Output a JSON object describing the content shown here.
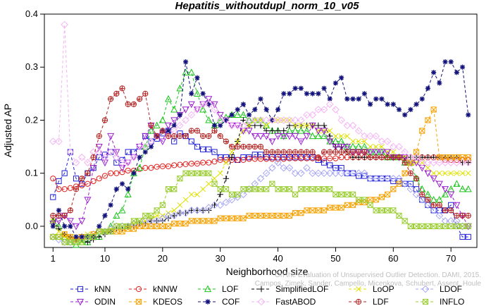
{
  "chart_data": {
    "type": "line",
    "title": "Hepatitis_withoutdupl_norm_10_v05",
    "xlabel": "Neighborhood size",
    "ylabel": "Adjusted AP",
    "xlim": [
      1,
      73
    ],
    "ylim": [
      -0.04,
      0.4
    ],
    "xticks": [
      1,
      10,
      20,
      30,
      40,
      50,
      60,
      70
    ],
    "yticks": [
      0.0,
      0.1,
      0.2,
      0.3,
      0.4
    ],
    "ytick_labels": [
      "0.0",
      "0.1",
      "0.2",
      "0.3",
      "0.4"
    ],
    "grid": false,
    "legend_position": "bottom",
    "x": [
      1,
      2,
      3,
      4,
      5,
      6,
      7,
      8,
      9,
      10,
      11,
      12,
      13,
      14,
      15,
      16,
      17,
      18,
      19,
      20,
      21,
      22,
      23,
      24,
      25,
      26,
      27,
      28,
      29,
      30,
      31,
      32,
      33,
      34,
      35,
      36,
      37,
      38,
      39,
      40,
      41,
      42,
      43,
      44,
      45,
      46,
      47,
      48,
      49,
      50,
      51,
      52,
      53,
      54,
      55,
      56,
      57,
      58,
      59,
      60,
      61,
      62,
      63,
      64,
      65,
      66,
      67,
      68,
      69,
      70,
      71,
      72,
      73
    ],
    "series": [
      {
        "name": "kNN",
        "color": "#1f1fd6",
        "marker": "square",
        "values": [
          0.055,
          0.085,
          0.1,
          0.14,
          0.09,
          0.08,
          0.1,
          0.11,
          0.13,
          0.135,
          0.14,
          0.12,
          0.125,
          0.14,
          0.14,
          0.15,
          0.17,
          0.16,
          0.165,
          0.175,
          0.18,
          0.16,
          0.175,
          0.17,
          0.16,
          0.15,
          0.145,
          0.145,
          0.14,
          0.13,
          0.13,
          0.13,
          0.125,
          0.13,
          0.13,
          0.135,
          0.135,
          0.13,
          0.13,
          0.13,
          0.13,
          0.13,
          0.13,
          0.13,
          0.13,
          0.13,
          0.125,
          0.12,
          0.115,
          0.11,
          0.11,
          0.1,
          0.1,
          0.095,
          0.095,
          0.09,
          0.09,
          0.09,
          0.09,
          0.085,
          0.085,
          0.08,
          0.08,
          0.07,
          0.05,
          0.04,
          0.03,
          0.03,
          0.03,
          0.04,
          0.0,
          -0.02,
          -0.02
        ]
      },
      {
        "name": "kNNW",
        "color": "#e0201e",
        "marker": "circle",
        "values": [
          0.09,
          0.07,
          0.07,
          0.072,
          0.075,
          0.077,
          0.08,
          0.085,
          0.09,
          0.095,
          0.1,
          0.1,
          0.102,
          0.105,
          0.105,
          0.108,
          0.11,
          0.11,
          0.112,
          0.113,
          0.113,
          0.115,
          0.116,
          0.117,
          0.118,
          0.118,
          0.12,
          0.12,
          0.122,
          0.125,
          0.125,
          0.125,
          0.125,
          0.125,
          0.127,
          0.127,
          0.127,
          0.127,
          0.127,
          0.127,
          0.127,
          0.128,
          0.128,
          0.128,
          0.128,
          0.128,
          0.128,
          0.128,
          0.128,
          0.128,
          0.13,
          0.13,
          0.13,
          0.13,
          0.13,
          0.13,
          0.13,
          0.13,
          0.13,
          0.13,
          0.13,
          0.13,
          0.13,
          0.13,
          0.13,
          0.13,
          0.13,
          0.13,
          0.125,
          0.125,
          0.125,
          0.125,
          0.125
        ]
      },
      {
        "name": "LOF",
        "color": "#19c519",
        "marker": "triangle-up",
        "values": [
          0.01,
          0.0,
          -0.02,
          -0.03,
          -0.035,
          -0.03,
          -0.03,
          -0.02,
          -0.02,
          -0.01,
          0.0,
          0.02,
          0.03,
          0.06,
          0.1,
          0.11,
          0.15,
          0.18,
          0.19,
          0.2,
          0.24,
          0.22,
          0.26,
          0.29,
          0.29,
          0.25,
          0.22,
          0.2,
          0.19,
          0.2,
          0.205,
          0.21,
          0.21,
          0.21,
          0.2,
          0.2,
          0.2,
          0.19,
          0.18,
          0.18,
          0.17,
          0.18,
          0.18,
          0.18,
          0.18,
          0.17,
          0.17,
          0.17,
          0.16,
          0.16,
          0.16,
          0.15,
          0.15,
          0.15,
          0.15,
          0.14,
          0.14,
          0.14,
          0.13,
          0.13,
          0.13,
          0.12,
          0.12,
          0.09,
          0.07,
          0.06,
          0.05,
          0.05,
          0.06,
          0.07,
          0.08,
          0.07,
          0.07
        ]
      },
      {
        "name": "SimplifiedLOF",
        "color": "#000000",
        "marker": "plus",
        "values": [
          0.01,
          -0.005,
          -0.015,
          -0.02,
          -0.025,
          -0.025,
          -0.03,
          -0.025,
          -0.02,
          -0.015,
          -0.01,
          -0.005,
          -0.005,
          0.0,
          0.0,
          0.005,
          0.005,
          0.01,
          0.01,
          0.01,
          0.015,
          0.02,
          0.025,
          0.025,
          0.03,
          0.03,
          0.03,
          0.03,
          0.04,
          0.06,
          0.09,
          0.13,
          0.16,
          0.2,
          0.19,
          0.19,
          0.19,
          0.18,
          0.18,
          0.18,
          0.18,
          0.19,
          0.19,
          0.19,
          0.19,
          0.19,
          0.19,
          0.19,
          0.17,
          0.15,
          0.15,
          0.14,
          0.13,
          0.13,
          0.13,
          0.13,
          0.13,
          0.13,
          0.13,
          0.13,
          0.13,
          0.13,
          0.13,
          0.13,
          0.13,
          0.13,
          0.13,
          0.13,
          0.13,
          0.13,
          0.13,
          0.12,
          0.12
        ]
      },
      {
        "name": "LoOP",
        "color": "#e0e000",
        "marker": "x",
        "values": [
          0.01,
          -0.01,
          -0.02,
          -0.025,
          -0.02,
          -0.02,
          -0.015,
          -0.015,
          -0.01,
          -0.01,
          -0.005,
          0.0,
          0.0,
          0.0,
          0.005,
          0.01,
          0.01,
          0.015,
          0.02,
          0.02,
          0.025,
          0.03,
          0.04,
          0.05,
          0.06,
          0.06,
          0.07,
          0.08,
          0.09,
          0.1,
          0.12,
          0.14,
          0.16,
          0.18,
          0.19,
          0.2,
          0.2,
          0.19,
          0.2,
          0.2,
          0.2,
          0.2,
          0.19,
          0.19,
          0.19,
          0.19,
          0.18,
          0.18,
          0.18,
          0.17,
          0.17,
          0.17,
          0.16,
          0.16,
          0.16,
          0.15,
          0.15,
          0.15,
          0.14,
          0.14,
          0.13,
          0.13,
          0.12,
          0.12,
          0.12,
          0.11,
          0.1,
          0.1,
          0.1,
          0.1,
          0.1,
          0.1,
          0.1
        ]
      },
      {
        "name": "LDOF",
        "color": "#a7a7f5",
        "marker": "diamond",
        "values": [
          -0.02,
          -0.025,
          -0.03,
          -0.03,
          -0.025,
          -0.02,
          -0.02,
          -0.015,
          -0.01,
          -0.01,
          -0.005,
          0.0,
          0.0,
          0.0,
          0.005,
          0.005,
          0.01,
          0.01,
          0.01,
          0.015,
          0.02,
          0.02,
          0.025,
          0.025,
          0.03,
          0.03,
          0.03,
          0.035,
          0.04,
          0.04,
          0.045,
          0.05,
          0.055,
          0.06,
          0.07,
          0.08,
          0.09,
          0.1,
          0.11,
          0.12,
          0.11,
          0.11,
          0.1,
          0.1,
          0.11,
          0.1,
          0.1,
          0.1,
          0.1,
          0.1,
          0.1,
          0.1,
          0.1,
          0.1,
          0.1,
          0.09,
          0.09,
          0.09,
          0.09,
          0.09,
          0.09,
          0.08,
          0.07,
          0.06,
          0.05,
          0.04,
          0.03,
          0.02,
          0.01,
          0.01,
          0.01,
          0.0,
          0.0
        ]
      },
      {
        "name": "ODIN",
        "color": "#9a1fd1",
        "marker": "triangle-down",
        "values": [
          0.005,
          0.01,
          0.02,
          0.01,
          0.0,
          0.01,
          0.05,
          0.11,
          0.15,
          0.12,
          0.17,
          0.14,
          0.11,
          0.12,
          0.13,
          0.15,
          0.17,
          0.19,
          0.17,
          0.16,
          0.19,
          0.2,
          0.21,
          0.22,
          0.23,
          0.22,
          0.23,
          0.24,
          0.23,
          0.21,
          0.2,
          0.19,
          0.19,
          0.18,
          0.18,
          0.17,
          0.17,
          0.17,
          0.16,
          0.17,
          0.17,
          0.17,
          0.17,
          0.16,
          0.17,
          0.19,
          0.18,
          0.18,
          0.16,
          0.15,
          0.15,
          0.15,
          0.14,
          0.14,
          0.14,
          0.14,
          0.14,
          0.14,
          0.14,
          0.13,
          0.13,
          0.13,
          0.12,
          0.12,
          0.11,
          0.1,
          0.09,
          0.08,
          0.07,
          0.06,
          0.04,
          0.02,
          0.0
        ]
      },
      {
        "name": "KDEOS",
        "color": "#f5a50c",
        "marker": "square-x",
        "values": [
          -0.02,
          -0.02,
          -0.015,
          -0.02,
          -0.025,
          -0.02,
          -0.02,
          -0.015,
          -0.01,
          -0.01,
          -0.01,
          -0.01,
          -0.01,
          -0.005,
          -0.005,
          0.0,
          0.0,
          0.0,
          0.0,
          0.0,
          0.0,
          0.005,
          0.005,
          0.005,
          0.01,
          0.01,
          0.01,
          0.01,
          0.01,
          0.015,
          0.015,
          0.015,
          0.015,
          0.015,
          0.02,
          0.02,
          0.02,
          0.02,
          0.02,
          0.02,
          0.02,
          0.02,
          0.025,
          0.025,
          0.03,
          0.03,
          0.03,
          0.03,
          0.035,
          0.035,
          0.035,
          0.04,
          0.04,
          0.045,
          0.045,
          0.05,
          0.05,
          0.055,
          0.06,
          0.07,
          0.08,
          0.1,
          0.12,
          0.14,
          0.18,
          0.2,
          0.22,
          0.13,
          0.13,
          0.13,
          0.13,
          0.13,
          0.13
        ]
      },
      {
        "name": "COF",
        "color": "#12127a",
        "marker": "asterisk",
        "values": [
          0.0,
          0.03,
          0.0,
          0.0,
          -0.02,
          -0.02,
          -0.02,
          -0.02,
          0.0,
          0.02,
          0.04,
          0.07,
          0.08,
          0.07,
          0.1,
          0.13,
          0.14,
          0.15,
          0.17,
          0.18,
          0.18,
          0.19,
          0.21,
          0.31,
          0.25,
          0.28,
          0.25,
          0.23,
          0.19,
          0.19,
          0.2,
          0.21,
          0.22,
          0.23,
          0.21,
          0.22,
          0.24,
          0.22,
          0.2,
          0.22,
          0.25,
          0.25,
          0.26,
          0.26,
          0.25,
          0.25,
          0.25,
          0.26,
          0.24,
          0.27,
          0.28,
          0.24,
          0.24,
          0.24,
          0.25,
          0.23,
          0.24,
          0.24,
          0.23,
          0.23,
          0.22,
          0.21,
          0.22,
          0.23,
          0.24,
          0.26,
          0.29,
          0.27,
          0.31,
          0.31,
          0.29,
          0.3,
          0.21
        ]
      },
      {
        "name": "FastABOD",
        "color": "#f4b5f4",
        "marker": "diamond",
        "values": [
          0.16,
          0.16,
          0.38,
          0.14,
          0.12,
          0.13,
          0.12,
          0.14,
          0.14,
          0.13,
          0.14,
          0.13,
          0.12,
          0.12,
          0.13,
          0.15,
          0.15,
          0.16,
          0.17,
          0.18,
          0.17,
          0.18,
          0.19,
          0.2,
          0.21,
          0.22,
          0.23,
          0.23,
          0.22,
          0.2,
          0.2,
          0.19,
          0.19,
          0.19,
          0.2,
          0.2,
          0.2,
          0.2,
          0.2,
          0.2,
          0.2,
          0.2,
          0.2,
          0.2,
          0.21,
          0.21,
          0.22,
          0.22,
          0.23,
          0.22,
          0.2,
          0.19,
          0.19,
          0.18,
          0.17,
          0.17,
          0.17,
          0.16,
          0.16,
          0.15,
          0.15,
          0.14,
          0.13,
          0.13,
          0.12,
          0.12,
          0.12,
          0.12,
          0.12,
          0.12,
          0.12,
          0.12,
          0.12
        ]
      },
      {
        "name": "LDF",
        "color": "#b22323",
        "marker": "circle-plus",
        "values": [
          0.02,
          0.02,
          0.02,
          0.03,
          0.07,
          0.09,
          0.1,
          0.13,
          0.17,
          0.2,
          0.24,
          0.25,
          0.26,
          0.23,
          0.23,
          0.24,
          0.25,
          0.19,
          0.17,
          0.18,
          0.17,
          0.17,
          0.17,
          0.17,
          0.18,
          0.18,
          0.17,
          0.17,
          0.18,
          0.17,
          0.16,
          0.15,
          0.15,
          0.15,
          0.15,
          0.15,
          0.15,
          0.14,
          0.14,
          0.14,
          0.14,
          0.14,
          0.14,
          0.14,
          0.14,
          0.14,
          0.13,
          0.14,
          0.14,
          0.14,
          0.14,
          0.14,
          0.14,
          0.14,
          0.14,
          0.13,
          0.13,
          0.13,
          0.13,
          0.13,
          0.13,
          0.12,
          0.1,
          0.09,
          0.06,
          0.05,
          0.04,
          0.04,
          0.03,
          0.03,
          0.02,
          0.02,
          0.02
        ]
      },
      {
        "name": "INFLO",
        "color": "#9acd32",
        "marker": "square-x",
        "values": [
          -0.02,
          -0.02,
          -0.03,
          -0.03,
          -0.03,
          -0.03,
          -0.02,
          -0.02,
          -0.01,
          -0.01,
          -0.01,
          0.0,
          0.0,
          0.0,
          0.01,
          0.01,
          0.02,
          0.02,
          0.03,
          0.04,
          0.07,
          0.07,
          0.09,
          0.1,
          0.1,
          0.1,
          0.1,
          0.1,
          0.08,
          0.07,
          0.07,
          0.06,
          0.06,
          0.07,
          0.07,
          0.07,
          0.07,
          0.07,
          0.08,
          0.07,
          0.07,
          0.07,
          0.06,
          0.07,
          0.07,
          0.07,
          0.07,
          0.07,
          0.07,
          0.06,
          0.06,
          0.06,
          0.06,
          0.05,
          0.05,
          0.04,
          0.03,
          0.03,
          0.03,
          0.03,
          0.02,
          0.01,
          0.0,
          0.0,
          0.0,
          0.0,
          0.0,
          0.0,
          0.0,
          0.0,
          0.0,
          0.0,
          0.0
        ]
      }
    ]
  },
  "watermark": {
    "line1": "Campos, Zimek, Sander, Campello, Micenkova, Schubert, Assent, Houle",
    "line2": "On the Evaluation of Unsupervised Outlier Detection. DAMI, 2015."
  }
}
